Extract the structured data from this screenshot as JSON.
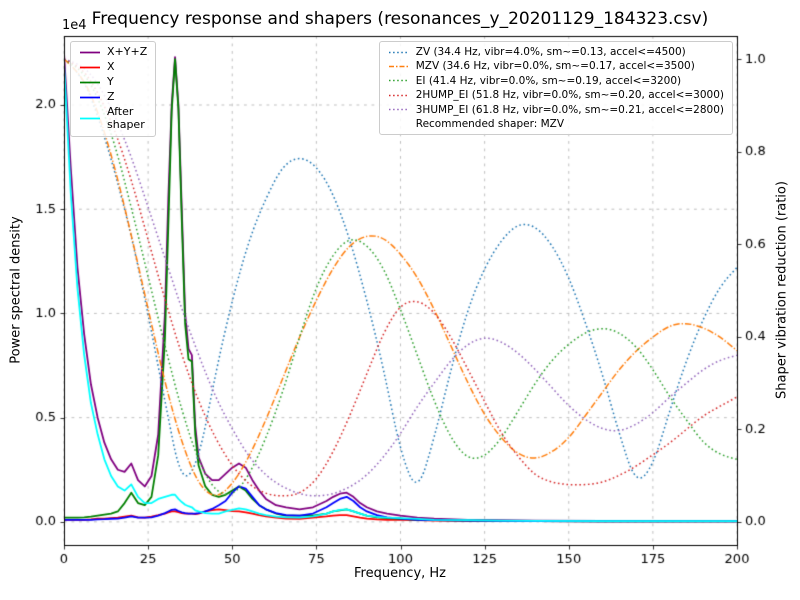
{
  "window": {
    "title": "Frequency response and shapers (resonances_y_20201129_184323.csv)"
  },
  "chart_data": {
    "type": "line",
    "title": "Frequency response and shapers (resonances_y_20201129_184323.csv)",
    "xlabel": "Frequency, Hz",
    "grid": true,
    "x_range": [
      0,
      200
    ],
    "x_ticks": [
      "0",
      "25",
      "50",
      "75",
      "100",
      "125",
      "150",
      "175",
      "200"
    ],
    "x_tick_values": [
      0,
      25,
      50,
      75,
      100,
      125,
      150,
      175,
      200
    ],
    "left_axis": {
      "label": "Power spectral density",
      "offset_text": "1e4",
      "unit_multiplier": 10000,
      "tick_labels": [
        "0.0",
        "0.5",
        "1.0",
        "1.5",
        "2.0"
      ],
      "tick_values": [
        0,
        0.5,
        1.0,
        1.5,
        2.0
      ],
      "range": [
        -0.111,
        2.331
      ]
    },
    "right_axis": {
      "label": "Shaper vibration reduction (ratio)",
      "tick_labels": [
        "0.0",
        "0.2",
        "0.4",
        "0.6",
        "0.8",
        "1.0"
      ],
      "tick_values": [
        0,
        0.2,
        0.4,
        0.6,
        0.8,
        1.0
      ],
      "range": [
        -0.05,
        1.05
      ]
    },
    "legend_note": "Recommended shaper: MZV",
    "recommended_shaper": "MZV",
    "psd_x": [
      0,
      2,
      4,
      6,
      8,
      10,
      12,
      14,
      16,
      18,
      20,
      22,
      24,
      26,
      28,
      30,
      31,
      32,
      33,
      34,
      35,
      36,
      37,
      38,
      39,
      40,
      42,
      44,
      46,
      48,
      50,
      52,
      54,
      56,
      58,
      60,
      63,
      66,
      70,
      74,
      78,
      80,
      82,
      84,
      86,
      88,
      90,
      93,
      96,
      100,
      105,
      110,
      120,
      130,
      140,
      160,
      180,
      200
    ],
    "psd_series": [
      {
        "id": "xyz",
        "legend_label": "X+Y+Z",
        "color": "#800080",
        "y": [
          2.25,
          1.7,
          1.22,
          0.9,
          0.66,
          0.5,
          0.38,
          0.3,
          0.25,
          0.24,
          0.28,
          0.2,
          0.17,
          0.22,
          0.42,
          1.0,
          1.55,
          2.0,
          2.23,
          2.0,
          1.5,
          1.0,
          0.83,
          0.8,
          0.46,
          0.31,
          0.23,
          0.2,
          0.2,
          0.23,
          0.26,
          0.28,
          0.26,
          0.2,
          0.15,
          0.11,
          0.08,
          0.07,
          0.06,
          0.07,
          0.1,
          0.12,
          0.135,
          0.14,
          0.12,
          0.09,
          0.07,
          0.05,
          0.04,
          0.03,
          0.02,
          0.015,
          0.01,
          0.008,
          0.006,
          0.005,
          0.004,
          0.004
        ]
      },
      {
        "id": "x",
        "legend_label": "X",
        "color": "#ff0000",
        "y": [
          0.01,
          0.01,
          0.01,
          0.01,
          0.012,
          0.015,
          0.015,
          0.018,
          0.02,
          0.025,
          0.03,
          0.022,
          0.02,
          0.025,
          0.032,
          0.04,
          0.045,
          0.05,
          0.05,
          0.047,
          0.042,
          0.04,
          0.04,
          0.04,
          0.037,
          0.04,
          0.05,
          0.056,
          0.06,
          0.056,
          0.052,
          0.05,
          0.046,
          0.04,
          0.032,
          0.026,
          0.02,
          0.016,
          0.015,
          0.02,
          0.026,
          0.03,
          0.032,
          0.032,
          0.026,
          0.02,
          0.016,
          0.012,
          0.01,
          0.01,
          0.008,
          0.006,
          0.005,
          0.004,
          0.004,
          0.003,
          0.003,
          0.003
        ]
      },
      {
        "id": "y",
        "legend_label": "Y",
        "color": "#008000",
        "y": [
          0.02,
          0.02,
          0.02,
          0.022,
          0.025,
          0.03,
          0.035,
          0.04,
          0.05,
          0.09,
          0.14,
          0.09,
          0.08,
          0.12,
          0.32,
          0.88,
          1.42,
          1.97,
          2.22,
          1.98,
          1.45,
          0.95,
          0.78,
          0.77,
          0.42,
          0.27,
          0.17,
          0.13,
          0.12,
          0.13,
          0.15,
          0.17,
          0.15,
          0.11,
          0.08,
          0.06,
          0.04,
          0.03,
          0.03,
          0.03,
          0.04,
          0.05,
          0.055,
          0.06,
          0.05,
          0.04,
          0.03,
          0.022,
          0.018,
          0.015,
          0.01,
          0.008,
          0.006,
          0.005,
          0.004,
          0.003,
          0.003,
          0.003
        ]
      },
      {
        "id": "z",
        "legend_label": "Z",
        "color": "#0000ff",
        "y": [
          0.01,
          0.01,
          0.01,
          0.01,
          0.01,
          0.012,
          0.013,
          0.015,
          0.016,
          0.02,
          0.026,
          0.02,
          0.02,
          0.022,
          0.03,
          0.042,
          0.05,
          0.058,
          0.06,
          0.052,
          0.046,
          0.042,
          0.04,
          0.04,
          0.04,
          0.042,
          0.05,
          0.062,
          0.08,
          0.1,
          0.14,
          0.17,
          0.16,
          0.12,
          0.08,
          0.06,
          0.042,
          0.032,
          0.03,
          0.04,
          0.07,
          0.09,
          0.11,
          0.12,
          0.1,
          0.07,
          0.05,
          0.032,
          0.022,
          0.016,
          0.01,
          0.008,
          0.006,
          0.005,
          0.004,
          0.003,
          0.003,
          0.003
        ]
      },
      {
        "id": "after-shaper",
        "legend_label": "After\nshaper",
        "color": "#00ffff",
        "y": [
          2.2,
          1.58,
          1.12,
          0.8,
          0.57,
          0.42,
          0.3,
          0.22,
          0.17,
          0.15,
          0.18,
          0.12,
          0.09,
          0.09,
          0.11,
          0.12,
          0.125,
          0.13,
          0.13,
          0.11,
          0.095,
          0.082,
          0.075,
          0.07,
          0.055,
          0.05,
          0.042,
          0.04,
          0.04,
          0.05,
          0.058,
          0.065,
          0.06,
          0.05,
          0.04,
          0.032,
          0.025,
          0.022,
          0.02,
          0.026,
          0.04,
          0.05,
          0.058,
          0.06,
          0.05,
          0.04,
          0.03,
          0.024,
          0.02,
          0.018,
          0.014,
          0.01,
          0.008,
          0.006,
          0.005,
          0.004,
          0.004,
          0.004
        ]
      }
    ],
    "shaper_x": [
      0,
      5,
      10,
      15,
      20,
      25,
      30,
      35,
      40,
      45,
      50,
      55,
      60,
      65,
      70,
      75,
      80,
      85,
      90,
      95,
      100,
      105,
      110,
      115,
      120,
      125,
      130,
      135,
      140,
      145,
      150,
      155,
      160,
      165,
      170,
      175,
      180,
      185,
      190,
      195,
      200
    ],
    "shaper_series": [
      {
        "id": "zv",
        "label": "ZV (34.4 Hz, vibr=4.0%, sm~=0.13, accel<=4500)",
        "color": "#1f77b4",
        "dash": "dotted",
        "y": [
          1.0,
          0.97,
          0.88,
          0.76,
          0.62,
          0.45,
          0.26,
          0.08,
          0.13,
          0.32,
          0.48,
          0.61,
          0.7,
          0.77,
          0.79,
          0.77,
          0.71,
          0.61,
          0.48,
          0.33,
          0.15,
          0.06,
          0.18,
          0.33,
          0.46,
          0.55,
          0.61,
          0.645,
          0.64,
          0.6,
          0.53,
          0.43,
          0.32,
          0.19,
          0.08,
          0.12,
          0.24,
          0.35,
          0.44,
          0.51,
          0.55
        ]
      },
      {
        "id": "mzv",
        "label": "MZV (34.6 Hz, vibr=0.0%, sm~=0.17, accel<=3500)",
        "color": "#ff7f0e",
        "dash": "dashdot",
        "y": [
          1.0,
          0.97,
          0.89,
          0.77,
          0.62,
          0.46,
          0.3,
          0.17,
          0.08,
          0.05,
          0.08,
          0.14,
          0.22,
          0.31,
          0.4,
          0.48,
          0.55,
          0.6,
          0.62,
          0.615,
          0.58,
          0.53,
          0.46,
          0.38,
          0.3,
          0.23,
          0.18,
          0.145,
          0.135,
          0.15,
          0.18,
          0.23,
          0.28,
          0.33,
          0.37,
          0.4,
          0.425,
          0.43,
          0.42,
          0.4,
          0.37
        ]
      },
      {
        "id": "ei",
        "label": "EI (41.4 Hz, vibr=0.0%, sm~=0.19, accel<=3200)",
        "color": "#2ca02c",
        "dash": "dotted",
        "y": [
          1.0,
          0.98,
          0.92,
          0.82,
          0.68,
          0.53,
          0.38,
          0.24,
          0.13,
          0.065,
          0.055,
          0.1,
          0.18,
          0.28,
          0.4,
          0.51,
          0.58,
          0.615,
          0.6,
          0.55,
          0.46,
          0.36,
          0.26,
          0.18,
          0.135,
          0.14,
          0.18,
          0.24,
          0.3,
          0.35,
          0.385,
          0.41,
          0.42,
          0.41,
          0.38,
          0.33,
          0.27,
          0.22,
          0.17,
          0.145,
          0.135
        ]
      },
      {
        "id": "2hump-ei",
        "label": "2HUMP_EI (51.8 Hz, vibr=0.0%, sm~=0.20, accel<=3000)",
        "color": "#d62728",
        "dash": "dotted",
        "y": [
          1.0,
          0.985,
          0.93,
          0.85,
          0.74,
          0.61,
          0.48,
          0.36,
          0.26,
          0.18,
          0.12,
          0.08,
          0.06,
          0.055,
          0.06,
          0.09,
          0.15,
          0.23,
          0.32,
          0.41,
          0.47,
          0.48,
          0.455,
          0.4,
          0.33,
          0.26,
          0.19,
          0.14,
          0.1,
          0.085,
          0.08,
          0.08,
          0.085,
          0.1,
          0.12,
          0.145,
          0.17,
          0.2,
          0.23,
          0.25,
          0.27
        ]
      },
      {
        "id": "3hump-ei",
        "label": "3HUMP_EI (61.8 Hz, vibr=0.0%, sm~=0.21, accel<=2800)",
        "color": "#9467bd",
        "dash": "dotted",
        "y": [
          1.0,
          0.99,
          0.95,
          0.88,
          0.79,
          0.68,
          0.57,
          0.46,
          0.36,
          0.27,
          0.2,
          0.14,
          0.1,
          0.075,
          0.06,
          0.055,
          0.06,
          0.075,
          0.1,
          0.14,
          0.19,
          0.25,
          0.3,
          0.35,
          0.385,
          0.4,
          0.39,
          0.365,
          0.33,
          0.29,
          0.25,
          0.22,
          0.2,
          0.195,
          0.21,
          0.235,
          0.27,
          0.3,
          0.33,
          0.35,
          0.36
        ]
      }
    ]
  }
}
